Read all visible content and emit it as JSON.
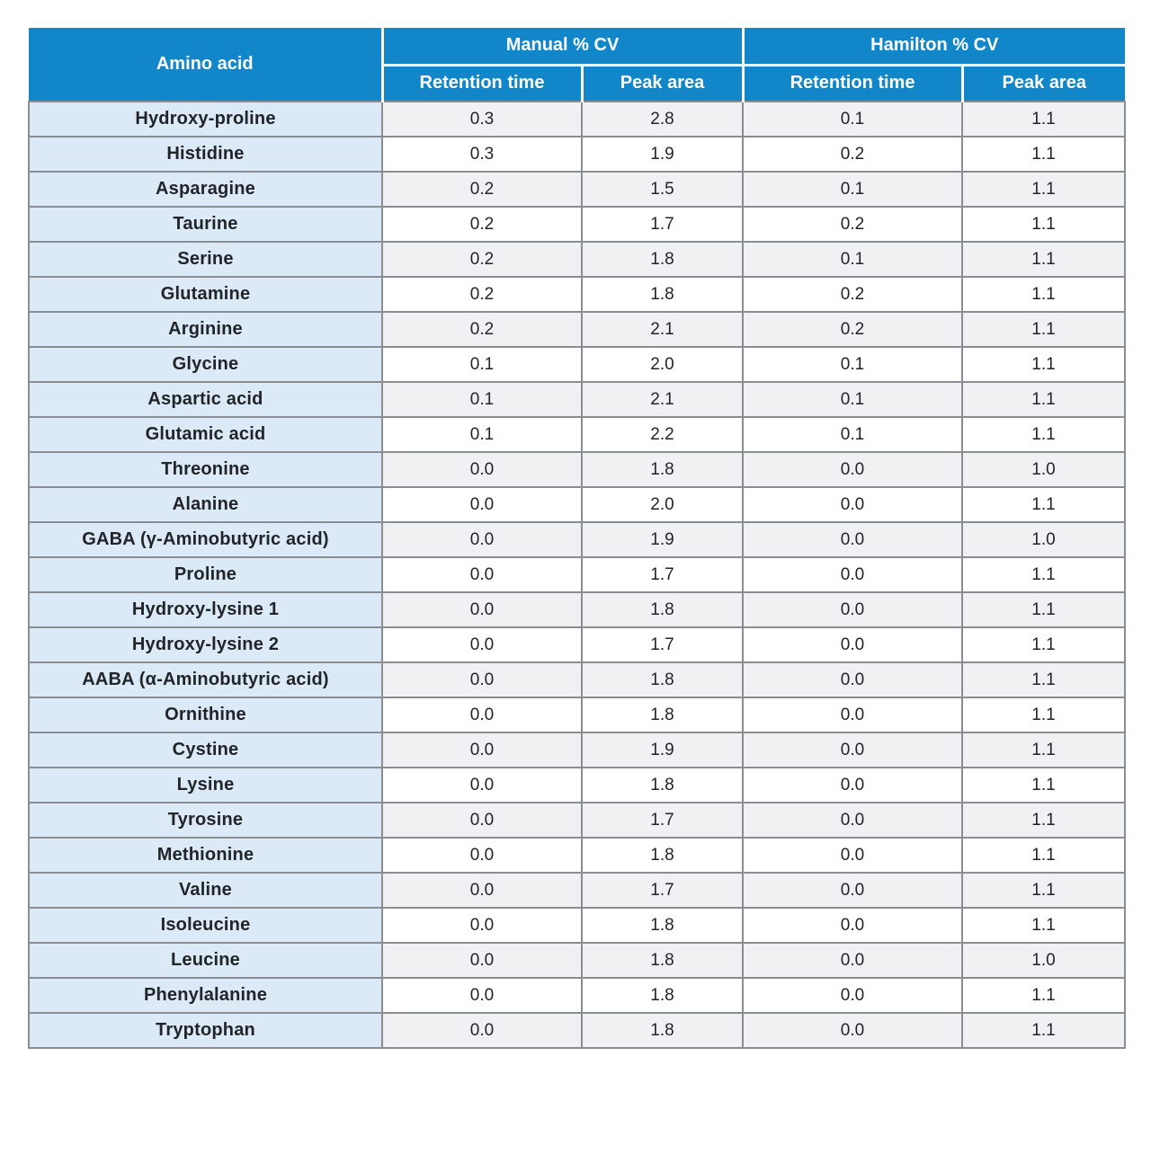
{
  "chart_data": {
    "type": "table",
    "header": {
      "amino_acid_label": "Amino acid",
      "groups": [
        {
          "label": "Manual % CV",
          "subcolumns": [
            "Retention time",
            "Peak area"
          ]
        },
        {
          "label": "Hamilton % CV",
          "subcolumns": [
            "Retention time",
            "Peak area"
          ]
        }
      ]
    },
    "rows": [
      {
        "name": "Hydroxy-proline",
        "values": [
          "0.3",
          "2.8",
          "0.1",
          "1.1"
        ]
      },
      {
        "name": "Histidine",
        "values": [
          "0.3",
          "1.9",
          "0.2",
          "1.1"
        ]
      },
      {
        "name": "Asparagine",
        "values": [
          "0.2",
          "1.5",
          "0.1",
          "1.1"
        ]
      },
      {
        "name": "Taurine",
        "values": [
          "0.2",
          "1.7",
          "0.2",
          "1.1"
        ]
      },
      {
        "name": "Serine",
        "values": [
          "0.2",
          "1.8",
          "0.1",
          "1.1"
        ]
      },
      {
        "name": "Glutamine",
        "values": [
          "0.2",
          "1.8",
          "0.2",
          "1.1"
        ]
      },
      {
        "name": "Arginine",
        "values": [
          "0.2",
          "2.1",
          "0.2",
          "1.1"
        ]
      },
      {
        "name": "Glycine",
        "values": [
          "0.1",
          "2.0",
          "0.1",
          "1.1"
        ]
      },
      {
        "name": "Aspartic acid",
        "values": [
          "0.1",
          "2.1",
          "0.1",
          "1.1"
        ]
      },
      {
        "name": "Glutamic acid",
        "values": [
          "0.1",
          "2.2",
          "0.1",
          "1.1"
        ]
      },
      {
        "name": "Threonine",
        "values": [
          "0.0",
          "1.8",
          "0.0",
          "1.0"
        ]
      },
      {
        "name": "Alanine",
        "values": [
          "0.0",
          "2.0",
          "0.0",
          "1.1"
        ]
      },
      {
        "name": "GABA (γ-Aminobutyric acid)",
        "values": [
          "0.0",
          "1.9",
          "0.0",
          "1.0"
        ]
      },
      {
        "name": "Proline",
        "values": [
          "0.0",
          "1.7",
          "0.0",
          "1.1"
        ]
      },
      {
        "name": "Hydroxy-lysine 1",
        "values": [
          "0.0",
          "1.8",
          "0.0",
          "1.1"
        ]
      },
      {
        "name": "Hydroxy-lysine 2",
        "values": [
          "0.0",
          "1.7",
          "0.0",
          "1.1"
        ]
      },
      {
        "name": "AABA (α-Aminobutyric acid)",
        "values": [
          "0.0",
          "1.8",
          "0.0",
          "1.1"
        ]
      },
      {
        "name": "Ornithine",
        "values": [
          "0.0",
          "1.8",
          "0.0",
          "1.1"
        ]
      },
      {
        "name": "Cystine",
        "values": [
          "0.0",
          "1.9",
          "0.0",
          "1.1"
        ]
      },
      {
        "name": "Lysine",
        "values": [
          "0.0",
          "1.8",
          "0.0",
          "1.1"
        ]
      },
      {
        "name": "Tyrosine",
        "values": [
          "0.0",
          "1.7",
          "0.0",
          "1.1"
        ]
      },
      {
        "name": "Methionine",
        "values": [
          "0.0",
          "1.8",
          "0.0",
          "1.1"
        ]
      },
      {
        "name": "Valine",
        "values": [
          "0.0",
          "1.7",
          "0.0",
          "1.1"
        ]
      },
      {
        "name": "Isoleucine",
        "values": [
          "0.0",
          "1.8",
          "0.0",
          "1.1"
        ]
      },
      {
        "name": "Leucine",
        "values": [
          "0.0",
          "1.8",
          "0.0",
          "1.0"
        ]
      },
      {
        "name": "Phenylalanine",
        "values": [
          "0.0",
          "1.8",
          "0.0",
          "1.1"
        ]
      },
      {
        "name": "Tryptophan",
        "values": [
          "0.0",
          "1.8",
          "0.0",
          "1.1"
        ]
      }
    ]
  },
  "colors": {
    "header_blue": "#1186c8",
    "row_label_blue": "#dce9f6",
    "stripe_gray": "#f0f1f3",
    "border_gray": "#8a8e93"
  }
}
